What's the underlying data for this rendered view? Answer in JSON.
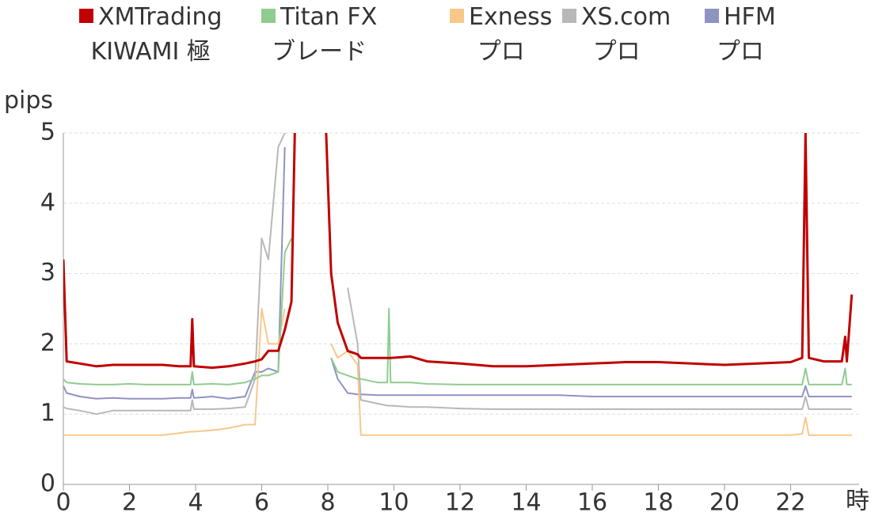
{
  "chart_data": {
    "type": "line",
    "y_label": "pips",
    "x_label": "時",
    "xlim": [
      0,
      24
    ],
    "ylim": [
      0,
      5
    ],
    "xticks": [
      0,
      2,
      4,
      6,
      8,
      10,
      12,
      14,
      16,
      18,
      20,
      22
    ],
    "yticks": [
      0,
      1,
      2,
      3,
      4,
      5
    ],
    "grid": true,
    "legend": "top",
    "x": [
      0,
      0.1,
      0.5,
      1,
      1.5,
      2,
      2.5,
      3,
      3.5,
      3.85,
      3.9,
      3.95,
      4.5,
      5,
      5.5,
      5.8,
      6,
      6.2,
      6.5,
      6.7,
      6.9,
      7,
      7.5,
      7.95,
      8.1,
      8.3,
      8.6,
      8.9,
      9.0,
      9.5,
      9.8,
      9.85,
      9.9,
      10.5,
      11,
      12,
      13,
      14,
      15,
      16,
      17,
      18,
      19,
      20,
      21,
      22,
      22.35,
      22.45,
      22.55,
      23,
      23.55,
      23.65,
      23.7,
      23.85
    ],
    "series": [
      {
        "name": "XMTrading\nKIWAMI 極",
        "color": "#c00000",
        "values": [
          3.2,
          1.75,
          1.72,
          1.68,
          1.7,
          1.7,
          1.7,
          1.7,
          1.68,
          1.68,
          2.35,
          1.68,
          1.66,
          1.68,
          1.72,
          1.75,
          1.78,
          1.9,
          1.9,
          2.2,
          2.6,
          5,
          null,
          5,
          3.0,
          2.3,
          1.9,
          1.85,
          1.8,
          1.8,
          1.8,
          1.8,
          1.8,
          1.82,
          1.75,
          1.72,
          1.68,
          1.68,
          1.7,
          1.72,
          1.74,
          1.74,
          1.72,
          1.7,
          1.72,
          1.74,
          1.8,
          5,
          1.8,
          1.75,
          1.75,
          2.1,
          1.75,
          2.7
        ]
      },
      {
        "name": "Titan FX\nブレード",
        "color": "#8fcc8f",
        "values": [
          1.5,
          1.45,
          1.43,
          1.42,
          1.42,
          1.43,
          1.42,
          1.42,
          1.42,
          1.42,
          1.6,
          1.42,
          1.43,
          1.42,
          1.45,
          1.5,
          1.55,
          1.55,
          1.6,
          3.3,
          3.5,
          null,
          null,
          null,
          1.8,
          1.6,
          1.55,
          1.5,
          1.5,
          1.45,
          1.45,
          2.5,
          1.45,
          1.45,
          1.43,
          1.42,
          1.42,
          1.42,
          1.42,
          1.42,
          1.42,
          1.42,
          1.42,
          1.42,
          1.42,
          1.42,
          1.42,
          1.65,
          1.42,
          1.42,
          1.42,
          1.65,
          1.42,
          1.42
        ]
      },
      {
        "name": "Exness\nプロ",
        "color": "#f8c88a",
        "values": [
          0.7,
          0.7,
          0.7,
          0.7,
          0.7,
          0.7,
          0.7,
          0.7,
          0.73,
          0.75,
          0.75,
          0.75,
          0.77,
          0.8,
          0.85,
          0.85,
          2.5,
          2.0,
          2.0,
          2.5,
          null,
          null,
          null,
          null,
          2.0,
          1.8,
          1.9,
          1.7,
          0.7,
          0.7,
          0.7,
          0.7,
          0.7,
          0.7,
          0.7,
          0.7,
          0.7,
          0.7,
          0.7,
          0.7,
          0.7,
          0.7,
          0.7,
          0.7,
          0.7,
          0.7,
          0.72,
          0.95,
          0.7,
          0.7,
          0.7,
          0.7,
          0.7,
          0.7
        ]
      },
      {
        "name": "XS.com\nプロ",
        "color": "#b8b8b8",
        "values": [
          1.1,
          1.08,
          1.05,
          1.0,
          1.05,
          1.05,
          1.05,
          1.05,
          1.05,
          1.05,
          1.2,
          1.07,
          1.07,
          1.08,
          1.1,
          1.5,
          3.5,
          3.2,
          4.8,
          5,
          null,
          null,
          null,
          null,
          null,
          null,
          2.8,
          2.0,
          1.2,
          1.15,
          1.12,
          1.12,
          1.12,
          1.1,
          1.1,
          1.08,
          1.07,
          1.07,
          1.07,
          1.07,
          1.07,
          1.07,
          1.07,
          1.07,
          1.07,
          1.07,
          1.07,
          1.25,
          1.07,
          1.07,
          1.07,
          1.07,
          1.07,
          1.07
        ]
      },
      {
        "name": "HFM\nプロ",
        "color": "#8f93c0",
        "values": [
          1.4,
          1.3,
          1.25,
          1.22,
          1.23,
          1.22,
          1.22,
          1.22,
          1.23,
          1.23,
          1.35,
          1.23,
          1.25,
          1.22,
          1.25,
          1.6,
          1.6,
          1.65,
          1.6,
          4.8,
          null,
          null,
          null,
          null,
          1.8,
          1.5,
          1.3,
          1.28,
          1.28,
          1.27,
          1.27,
          1.27,
          1.27,
          1.27,
          1.27,
          1.27,
          1.27,
          1.27,
          1.27,
          1.25,
          1.25,
          1.25,
          1.25,
          1.25,
          1.25,
          1.25,
          1.25,
          1.4,
          1.25,
          1.25,
          1.25,
          1.25,
          1.25,
          1.25
        ]
      }
    ]
  }
}
